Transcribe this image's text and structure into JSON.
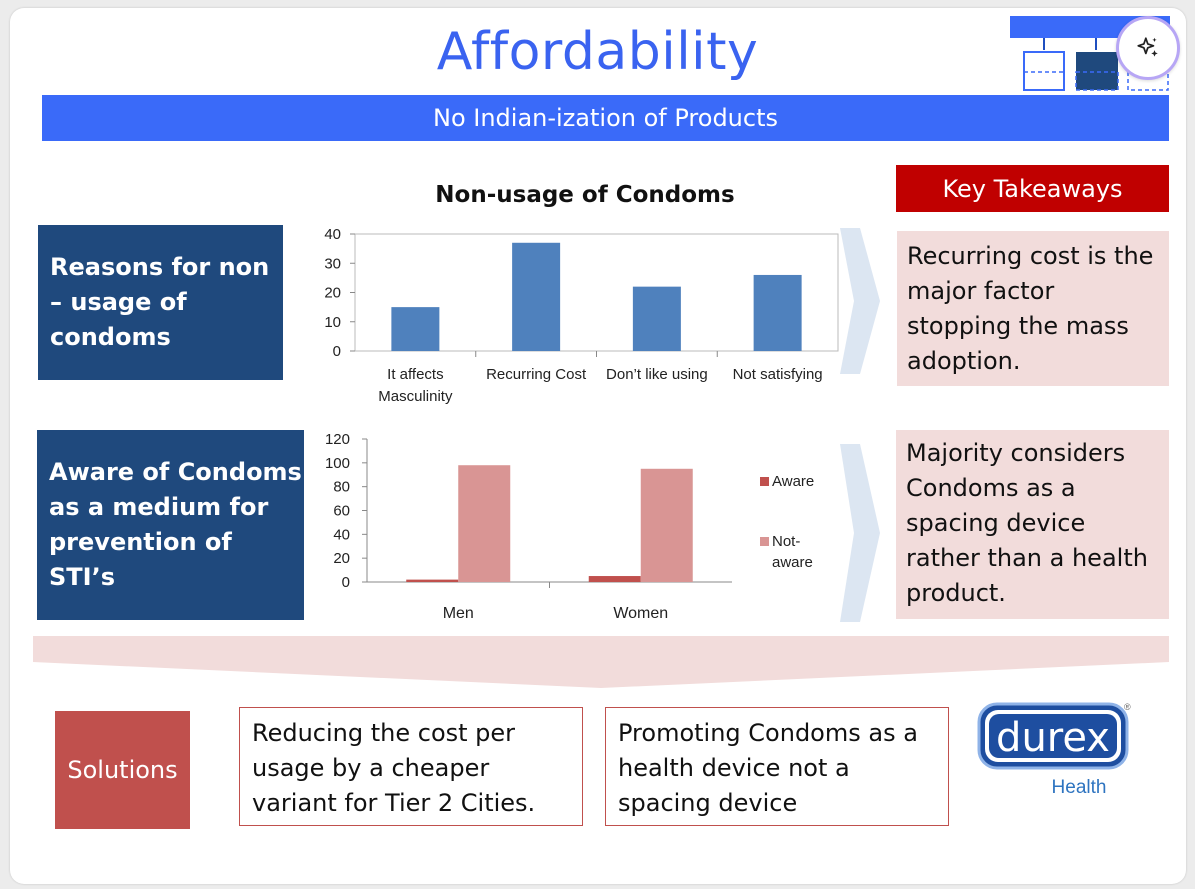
{
  "slide": {
    "title": "Affordability",
    "subtitle": "No Indian-ization of Products",
    "key_takeaways_label": "Key Takeaways",
    "left_labels": {
      "reasons": "Reasons for non – usage of condoms",
      "aware": "Aware of Condoms as a medium for prevention of STI’s"
    },
    "takeaways": [
      "Recurring cost is the major factor stopping the mass adoption.",
      "Majority considers Condoms as a spacing device rather than a health product."
    ],
    "solutions_label": "Solutions",
    "solutions": [
      "Reducing the cost per usage by a cheaper variant for Tier 2 Cities.",
      "Promoting Condoms as a health device not a spacing device"
    ],
    "logo": {
      "brand": "durex",
      "tagline": "Health",
      "registered_mark": "®"
    },
    "colors": {
      "title_blue": "#3a63f0",
      "bar_blue": "#3a6af9",
      "navy": "#1f497d",
      "red": "#c00000",
      "pink": "#f2dcdb",
      "solutions_red": "#c0504d"
    }
  },
  "toolbar": {
    "ai_button_icon": "sparkle-icon"
  },
  "chart_data": [
    {
      "type": "bar",
      "title": "Non-usage of Condoms",
      "categories": [
        "It affects Masculinity",
        "Recurring Cost",
        "Don’t like using",
        "Not satisfying"
      ],
      "category_lines": [
        [
          "It affects",
          "Masculinity"
        ],
        [
          "Recurring Cost"
        ],
        [
          "Don’t like using"
        ],
        [
          "Not satisfying"
        ]
      ],
      "values": [
        15,
        37,
        22,
        26
      ],
      "ylim": [
        0,
        40
      ],
      "yticks": [
        0,
        10,
        20,
        30,
        40
      ],
      "color": "#4f81bd",
      "grid": false,
      "legend": "none"
    },
    {
      "type": "bar",
      "categories": [
        "Men",
        "Women"
      ],
      "series": [
        {
          "name": "Aware",
          "values": [
            2,
            5
          ],
          "color": "#c0504d"
        },
        {
          "name": "Not-aware",
          "values": [
            98,
            95
          ],
          "color": "#d99594"
        }
      ],
      "legend_lines": [
        [
          "Aware"
        ],
        [
          "Not-",
          "aware"
        ]
      ],
      "ylim": [
        0,
        120
      ],
      "yticks": [
        0,
        20,
        40,
        60,
        80,
        100,
        120
      ],
      "grid": false,
      "legend": "right"
    }
  ]
}
